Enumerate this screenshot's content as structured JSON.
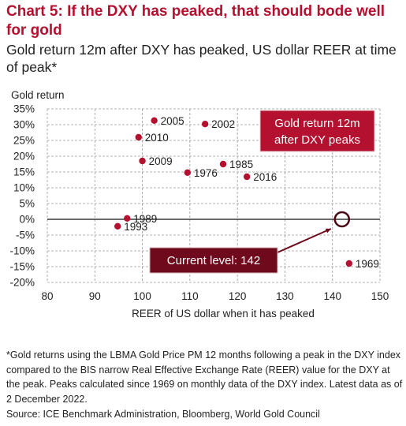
{
  "chart_title": "Chart 5: If the DXY has peaked, that should bode well for gold",
  "subtitle": "Gold return 12m after DXY has peaked, US dollar REER at time of peak*",
  "footnote": "*Gold returns using the LBMA Gold Price PM 12 months following a peak in the DXY index compared to the BIS narrow Real Effective Exchange Rate (REER) value for the DXY at the peak. Peaks calculated since 1969 on monthly data of the DXY index. Latest data as of 2 December 2022.",
  "source": "Source: ICE Benchmark Administration, Bloomberg, World Gold Council",
  "colors": {
    "accent": "#b3112f",
    "marker": "#b3112f",
    "current_callout": "#6e0a1c",
    "text": "#222222"
  },
  "chart_data": {
    "type": "scatter",
    "xlabel": "REER of US dollar when it has peaked",
    "ylabel": "Gold return",
    "xlim": [
      80,
      150
    ],
    "ylim": [
      -20,
      35
    ],
    "x_ticks": [
      80,
      90,
      100,
      110,
      120,
      130,
      140,
      150
    ],
    "y_ticks": [
      35,
      30,
      25,
      20,
      15,
      10,
      5,
      0,
      -5,
      -10,
      -15,
      -20
    ],
    "y_tick_format": "percent",
    "grid": "dashed",
    "points": [
      {
        "label": "2005",
        "x": 102.5,
        "y": 31.3
      },
      {
        "label": "2002",
        "x": 113.2,
        "y": 30.2
      },
      {
        "label": "2010",
        "x": 99.2,
        "y": 26.0
      },
      {
        "label": "2009",
        "x": 100.0,
        "y": 18.5
      },
      {
        "label": "1985",
        "x": 117.0,
        "y": 17.5
      },
      {
        "label": "1976",
        "x": 109.5,
        "y": 14.8
      },
      {
        "label": "2016",
        "x": 122.0,
        "y": 13.5
      },
      {
        "label": "1989",
        "x": 96.8,
        "y": 0.3
      },
      {
        "label": "1993",
        "x": 94.8,
        "y": -2.2
      },
      {
        "label": "1969",
        "x": 143.5,
        "y": -14.0
      }
    ],
    "highlight": {
      "label": "Current level: 142",
      "x": 142,
      "y": 0
    },
    "legend": "Gold return 12m after DXY peaks",
    "legend_position": "top-right"
  }
}
